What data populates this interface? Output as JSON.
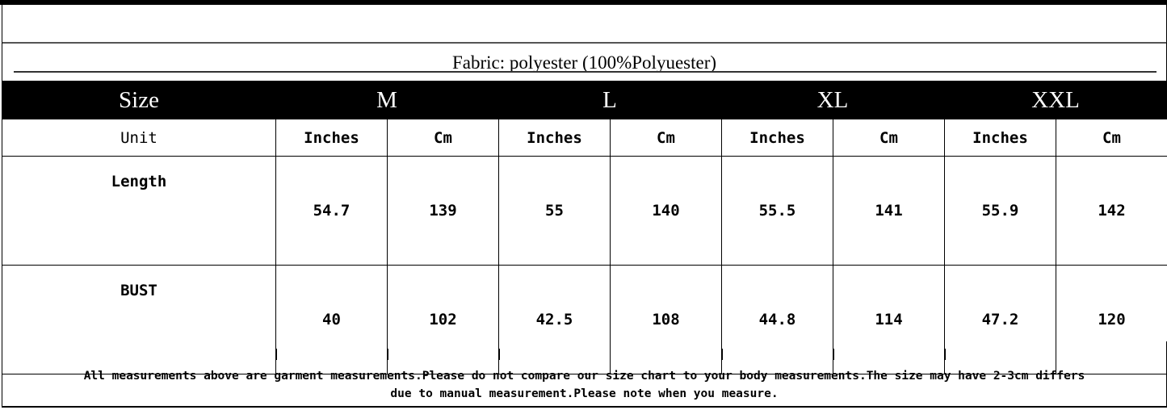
{
  "fabric": "Fabric: polyester (100%Polyuester)",
  "sizes": {
    "label": "Size",
    "items": [
      "M",
      "L",
      "XL",
      "XXL"
    ]
  },
  "units": {
    "label": "Unit",
    "inches": "Inches",
    "cm": "Cm"
  },
  "rows": [
    {
      "label": "Length",
      "values": [
        "54.7",
        "139",
        "55",
        "140",
        "55.5",
        "141",
        "55.9",
        "142"
      ]
    },
    {
      "label": "BUST",
      "values": [
        "40",
        "102",
        "42.5",
        "108",
        "44.8",
        "114",
        "47.2",
        "120"
      ]
    }
  ],
  "notes": {
    "line1": "All measurements above are garment measurements.Please do not compare our size chart to your body measurements.The size may have 2-3cm differs",
    "line2": "due to manual measurement.Please note when you measure."
  }
}
